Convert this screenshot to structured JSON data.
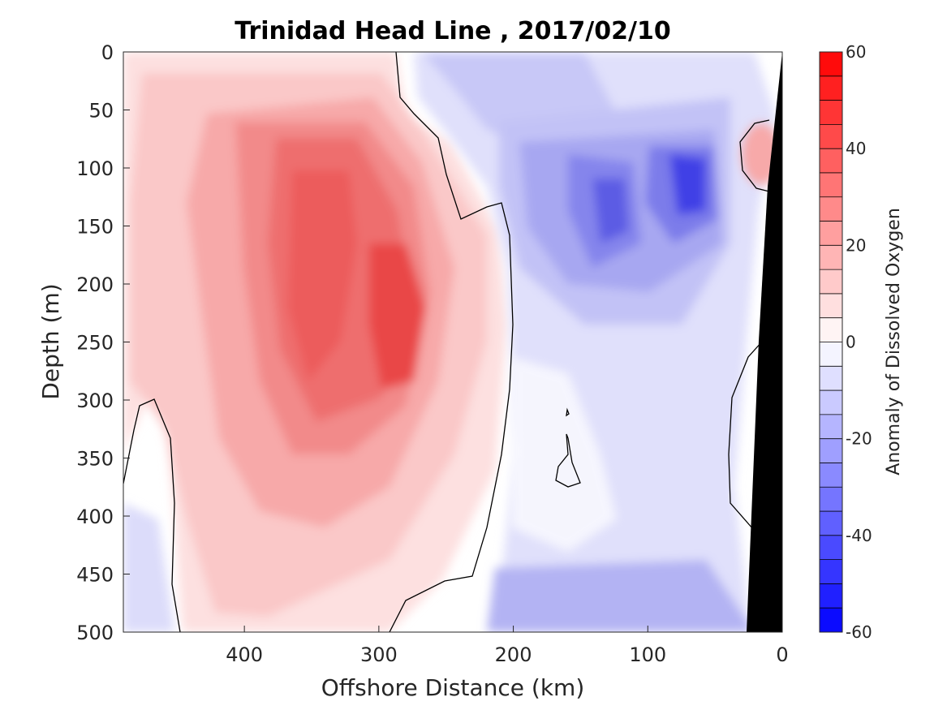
{
  "chart_data": {
    "type": "heatmap",
    "title": "Trinidad Head Line , 2017/02/10",
    "xlabel": "Offshore Distance (km)",
    "ylabel": "Depth (m)",
    "xlim": [
      490,
      0
    ],
    "ylim": [
      0,
      500
    ],
    "x_ticks": [
      400,
      300,
      200,
      100,
      0
    ],
    "y_ticks": [
      0,
      50,
      100,
      150,
      200,
      250,
      300,
      350,
      400,
      450,
      500
    ],
    "colorbar": {
      "label": "Anomaly of Dissolved Oxygen",
      "range": [
        -60,
        60
      ],
      "ticks": [
        60,
        40,
        20,
        0,
        -20,
        -40,
        -60
      ],
      "levels": [
        -60,
        -55,
        -50,
        -45,
        -40,
        -35,
        -30,
        -25,
        -20,
        -15,
        -10,
        -5,
        0,
        5,
        10,
        15,
        20,
        25,
        30,
        35,
        40,
        45,
        50,
        55,
        60
      ],
      "colormap": "blue-white-red",
      "low_color": "#0000ff",
      "high_color": "#ff0000"
    },
    "zero_contour_color": "#000000",
    "bathymetry_color": "#000000",
    "features": [
      {
        "label": "Positive anomaly core",
        "x": 285,
        "y": 230,
        "value": 42
      },
      {
        "label": "Positive anomaly core",
        "x": 340,
        "y": 200,
        "value": 35
      },
      {
        "label": "Negative anomaly core",
        "x": 70,
        "y": 100,
        "value": -45
      },
      {
        "label": "Negative anomaly core",
        "x": 130,
        "y": 130,
        "value": -38
      },
      {
        "label": "Nearshore positive patch",
        "x": 15,
        "y": 90,
        "value": 15
      }
    ]
  }
}
